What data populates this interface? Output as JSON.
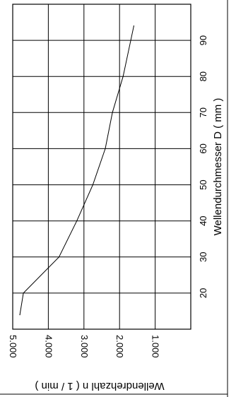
{
  "chart_data": {
    "type": "line",
    "title": "",
    "xlabel": "Wellendurchmesser D ( mm )",
    "ylabel": "Wellendrehzahl n ( 1 / min )",
    "xlim": [
      10,
      100
    ],
    "ylim": [
      0,
      5000
    ],
    "x_ticks": [
      "20",
      "30",
      "40",
      "50",
      "60",
      "70",
      "80",
      "90"
    ],
    "y_ticks": [
      "5.000",
      "4.000",
      "3.000",
      "2.000",
      "1.000"
    ],
    "grid": true,
    "series": [
      {
        "x": [
          14,
          20,
          30,
          40,
          50,
          60,
          70,
          80,
          94
        ],
        "y": [
          4800,
          4700,
          3700,
          3200,
          2750,
          2400,
          2200,
          1900,
          1600
        ]
      }
    ]
  }
}
